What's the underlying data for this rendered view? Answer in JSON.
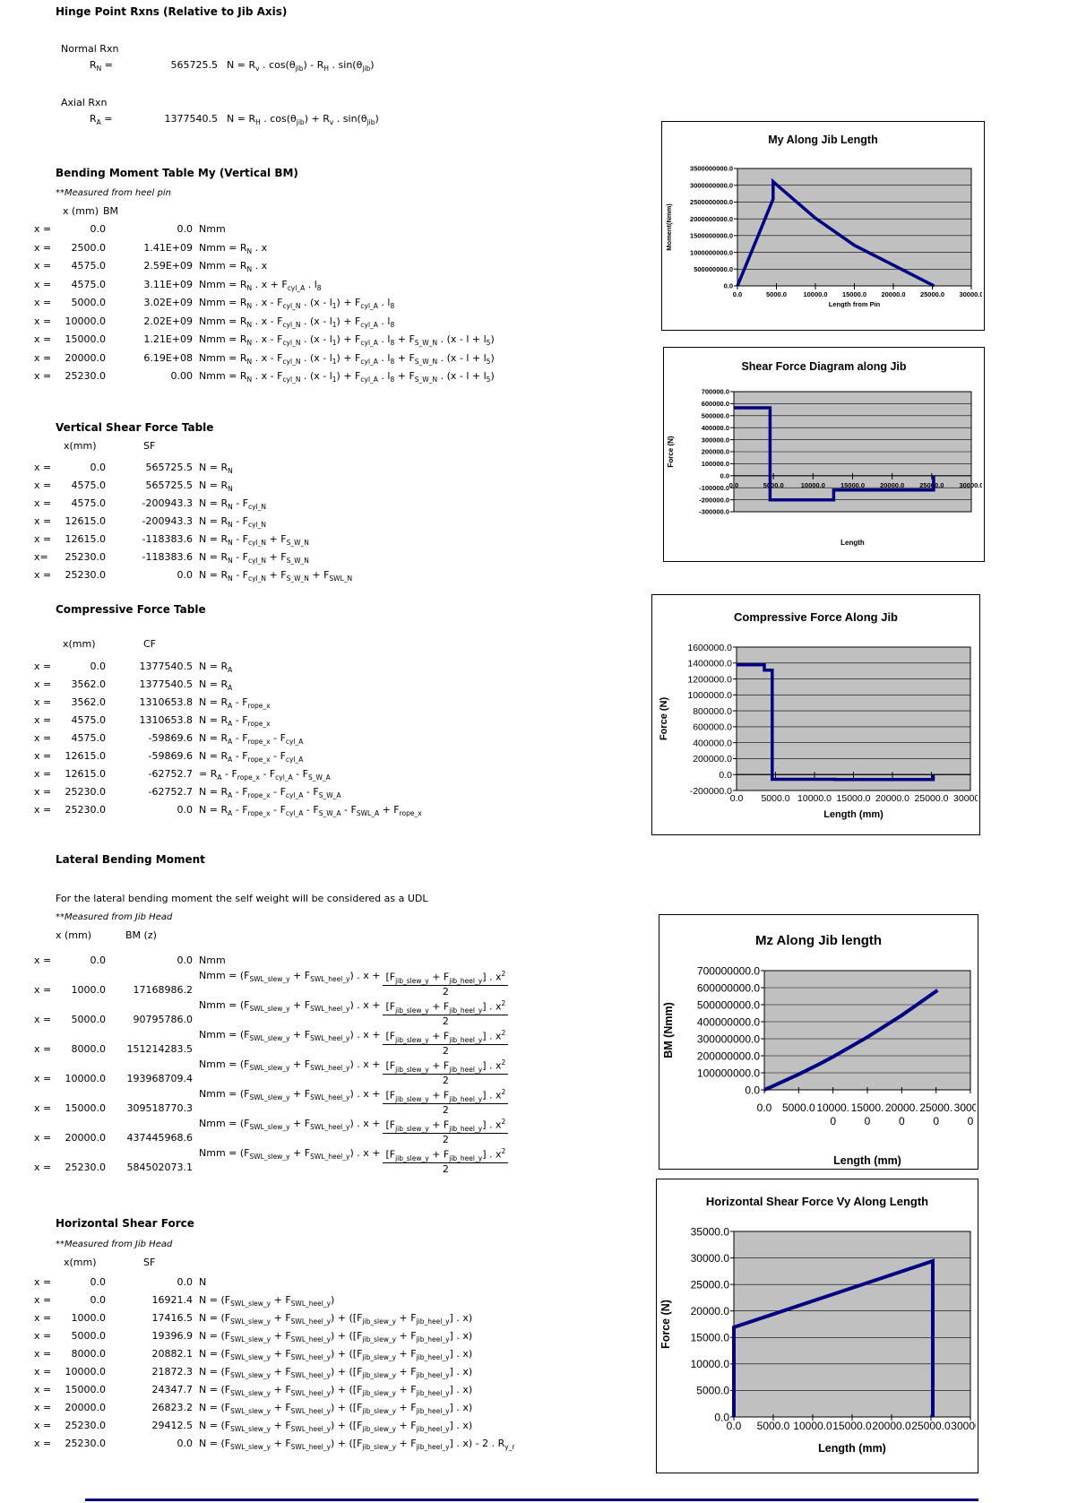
{
  "colors": {
    "series": "#000080",
    "plot_bg": "#c0c0c0",
    "chart_border": "#000000",
    "text": "#000000",
    "page_bg": "#ffffff"
  },
  "sections": {
    "hinge": {
      "title": "Hinge Point Rxns (Relative to Jib Axis)",
      "normal_label": "Normal Rxn",
      "rn_label": "R{N} =",
      "rn_value": "565725.5",
      "rn_formula": "N = R{v} . cos(θ{jib}) - R{H} . sin(θ{jib})",
      "axial_label": "Axial Rxn",
      "ra_label": "R{A} =",
      "ra_value": "1377540.5",
      "ra_formula": "N = R{H} . cos(θ{jib}) + R{v} . sin(θ{jib})"
    },
    "bm_table": {
      "title": "Bending Moment Table My (Vertical BM)",
      "note": "**Measured from heel pin",
      "col1": "x (mm)",
      "col2": "BM",
      "rows": [
        {
          "xl": "x =",
          "x": "0.0",
          "v": "0.0",
          "f": "Nmm"
        },
        {
          "xl": "x =",
          "x": "2500.0",
          "v": "1.41E+09",
          "f": "Nmm = R{N} . x"
        },
        {
          "xl": "x =",
          "x": "4575.0",
          "v": "2.59E+09",
          "f": "Nmm = R{N} . x"
        },
        {
          "xl": "x =",
          "x": "4575.0",
          "v": "3.11E+09",
          "f": "Nmm = R{N} . x + F{cyl_A} . l{8}"
        },
        {
          "xl": "x =",
          "x": "5000.0",
          "v": "3.02E+09",
          "f": "Nmm = R{N} . x - F{cyl_N} . (x - l{1}) + F{cyl_A} . l{8}"
        },
        {
          "xl": "x =",
          "x": "10000.0",
          "v": "2.02E+09",
          "f": "Nmm = R{N} . x - F{cyl_N} . (x - l{1}) + F{cyl_A} . l{8}"
        },
        {
          "xl": "x =",
          "x": "15000.0",
          "v": "1.21E+09",
          "f": "Nmm = R{N} . x - F{cyl_N} . (x - l{1}) + F{cyl_A} . l{8} + F{S_W_N} . (x - l + l{5})"
        },
        {
          "xl": "x =",
          "x": "20000.0",
          "v": "6.19E+08",
          "f": "Nmm = R{N} . x - F{cyl_N} . (x - l{1}) + F{cyl_A} . l{8} + F{S_W_N} . (x - l + l{5})"
        },
        {
          "xl": "x =",
          "x": "25230.0",
          "v": "0.00",
          "f": "Nmm = R{N} . x - F{cyl_N} . (x - l{1}) + F{cyl_A} . l{8} + F{S_W_N} . (x - l + l{5})"
        }
      ]
    },
    "sf_table": {
      "title": "Vertical Shear Force Table",
      "col1": "x(mm)",
      "col2": "SF",
      "rows": [
        {
          "xl": "x =",
          "x": "0.0",
          "v": "565725.5",
          "f": "N = R{N}"
        },
        {
          "xl": "x =",
          "x": "4575.0",
          "v": "565725.5",
          "f": "N = R{N}"
        },
        {
          "xl": "x =",
          "x": "4575.0",
          "v": "-200943.3",
          "f": "N = R{N} - F{cyl_N}"
        },
        {
          "xl": "x =",
          "x": "12615.0",
          "v": "-200943.3",
          "f": "N = R{N} - F{cyl_N}"
        },
        {
          "xl": "x =",
          "x": "12615.0",
          "v": "-118383.6",
          "f": "N = R{N} - F{cyl_N} + F{S_W_N}"
        },
        {
          "xl": "x=",
          "x": "25230.0",
          "v": "-118383.6",
          "f": "N = R{N} - F{cyl_N} + F{S_W_N}"
        },
        {
          "xl": "x =",
          "x": "25230.0",
          "v": "0.0",
          "f": "N = R{N} - F{cyl_N} + F{S_W_N} + F{SWL_N}"
        }
      ]
    },
    "cf_table": {
      "title": "Compressive Force Table",
      "col1": "x(mm)",
      "col2": "CF",
      "rows": [
        {
          "xl": "x =",
          "x": "0.0",
          "v": "1377540.5",
          "f": "N = R{A}"
        },
        {
          "xl": "x =",
          "x": "3562.0",
          "v": "1377540.5",
          "f": "N = R{A}"
        },
        {
          "xl": "x =",
          "x": "3562.0",
          "v": "1310653.8",
          "f": "N = R{A} - F{rope_x}"
        },
        {
          "xl": "x =",
          "x": "4575.0",
          "v": "1310653.8",
          "f": "N = R{A} - F{rope_x}"
        },
        {
          "xl": "x =",
          "x": "4575.0",
          "v": "-59869.6",
          "f": "N = R{A} - F{rope_x} - F{cyl_A}"
        },
        {
          "xl": "x =",
          "x": "12615.0",
          "v": "-59869.6",
          "f": "N = R{A} - F{rope_x} - F{cyl_A}"
        },
        {
          "xl": "x =",
          "x": "12615.0",
          "v": "-62752.7",
          "f": "= R{A} - F{rope_x} - F{cyl_A} - F{S_W_A}"
        },
        {
          "xl": "x =",
          "x": "25230.0",
          "v": "-62752.7",
          "f": "N = R{A} - F{rope_x} - F{cyl_A} - F{S_W_A}"
        },
        {
          "xl": "x =",
          "x": "25230.0",
          "v": "0.0",
          "f": "N = R{A} - F{rope_x} - F{cyl_A} - F{S_W_A} - F{SWL_A} + F{rope_x}"
        }
      ]
    },
    "lateral": {
      "title": "Lateral Bending Moment",
      "desc": "For the lateral bending moment the self weight will be considered as a UDL",
      "note": "**Measured from Jib Head",
      "col1": "x (mm)",
      "col2": "BM (z)",
      "rows": [
        {
          "cls": "first",
          "xl": "x =",
          "x": "0.0",
          "v": "0.0",
          "f": "Nmm"
        },
        {
          "xl": "x =",
          "x": "1000.0",
          "v": "17168986.2",
          "fpre": "Nmm = (F{SWL_slew_y} + F{SWL_heel_y}) . x + ",
          "fnum": "[F{jib_slew_y} + F{jib_heel_y}] . x{^2}",
          "fden": "2"
        },
        {
          "xl": "x =",
          "x": "5000.0",
          "v": "90795786.0",
          "fpre": "Nmm = (F{SWL_slew_y} + F{SWL_heel_y}) . x + ",
          "fnum": "[F{jib_slew_y} + F{jib_heel_y}] . x{^2}",
          "fden": "2"
        },
        {
          "xl": "x =",
          "x": "8000.0",
          "v": "151214283.5",
          "fpre": "Nmm = (F{SWL_slew_y} + F{SWL_heel_y}) . x + ",
          "fnum": "[F{jib_slew_y} + F{jib_heel_y}] . x{^2}",
          "fden": "2"
        },
        {
          "xl": "x =",
          "x": "10000.0",
          "v": "193968709.4",
          "fpre": "Nmm = (F{SWL_slew_y} + F{SWL_heel_y}) . x + ",
          "fnum": "[F{jib_slew_y} + F{jib_heel_y}] . x{^2}",
          "fden": "2"
        },
        {
          "xl": "x =",
          "x": "15000.0",
          "v": "309518770.3",
          "fpre": "Nmm = (F{SWL_slew_y} + F{SWL_heel_y}) . x + ",
          "fnum": "[F{jib_slew_y} + F{jib_heel_y}] . x{^2}",
          "fden": "2"
        },
        {
          "xl": "x =",
          "x": "20000.0",
          "v": "437445968.6",
          "fpre": "Nmm = (F{SWL_slew_y} + F{SWL_heel_y}) . x + ",
          "fnum": "[F{jib_slew_y} + F{jib_heel_y}] . x{^2}",
          "fden": "2"
        },
        {
          "xl": "x =",
          "x": "25230.0",
          "v": "584502073.1",
          "fpre": "Nmm = (F{SWL_slew_y} + F{SWL_heel_y}) . x + ",
          "fnum": "[F{jib_slew_y} + F{jib_heel_y}] . x{^2}",
          "fden": "2"
        }
      ]
    },
    "hsf_table": {
      "title": "Horizontal Shear Force",
      "note": "**Measured from Jib Head",
      "col1": "x(mm)",
      "col2": "SF",
      "rows": [
        {
          "xl": "x =",
          "x": "0.0",
          "v": "0.0",
          "f": "N"
        },
        {
          "xl": "x =",
          "x": "0.0",
          "v": "16921.4",
          "f": "N = (F{SWL_slew_y} + F{SWL_heel_y})"
        },
        {
          "xl": "x =",
          "x": "1000.0",
          "v": "17416.5",
          "f": "N = (F{SWL_slew_y} + F{SWL_heel_y}) + ([F{jib_slew_y} + F{jib_heel_y}] . x)"
        },
        {
          "xl": "x =",
          "x": "5000.0",
          "v": "19396.9",
          "f": "N = (F{SWL_slew_y} + F{SWL_heel_y}) + ([F{jib_slew_y} + F{jib_heel_y}] . x)"
        },
        {
          "xl": "x =",
          "x": "8000.0",
          "v": "20882.1",
          "f": "N = (F{SWL_slew_y} + F{SWL_heel_y}) + ([F{jib_slew_y} + F{jib_heel_y}] . x)"
        },
        {
          "xl": "x =",
          "x": "10000.0",
          "v": "21872.3",
          "f": "N = (F{SWL_slew_y} + F{SWL_heel_y}) + ([F{jib_slew_y} + F{jib_heel_y}] . x)"
        },
        {
          "xl": "x =",
          "x": "15000.0",
          "v": "24347.7",
          "f": "N = (F{SWL_slew_y} + F{SWL_heel_y}) + ([F{jib_slew_y} + F{jib_heel_y}] . x)"
        },
        {
          "xl": "x =",
          "x": "20000.0",
          "v": "26823.2",
          "f": "N = (F{SWL_slew_y} + F{SWL_heel_y}) + ([F{jib_slew_y} + F{jib_heel_y}] . x)"
        },
        {
          "xl": "x =",
          "x": "25230.0",
          "v": "29412.5",
          "f": "N = (F{SWL_slew_y} + F{SWL_heel_y}) + ([F{jib_slew_y} + F{jib_heel_y}] . x)"
        },
        {
          "xl": "x =",
          "x": "25230.0",
          "v": "0.0",
          "f": "N = (F{SWL_slew_y} + F{SWL_heel_y}) + ([F{jib_slew_y} + F{jib_heel_y}] . x) - 2 . R{y_r}"
        }
      ]
    }
  },
  "chart_data": [
    {
      "name": "my-along-jib-length",
      "type": "line",
      "title": "My Along Jib Length",
      "xlabel": "Length from Pin",
      "ylabel": "Moment(Nmm)",
      "xlim": [
        0,
        30000
      ],
      "ylim": [
        0,
        3500000000
      ],
      "grid": true,
      "legend": "none",
      "xticks": [
        0,
        5000,
        10000,
        15000,
        20000,
        25000,
        30000
      ],
      "xtick_labels": [
        "0.0",
        "5000.0",
        "10000.0",
        "15000.0",
        "20000.0",
        "25000.0",
        "30000.0"
      ],
      "yticks": [
        0,
        500000000,
        1000000000,
        1500000000,
        2000000000,
        2500000000,
        3000000000,
        3500000000
      ],
      "ytick_labels": [
        "0.0",
        "500000000.0",
        "1000000000.0",
        "1500000000.0",
        "2000000000.0",
        "2500000000.0",
        "3000000000.0",
        "3500000000.0"
      ],
      "points": [
        [
          0,
          0
        ],
        [
          2500,
          1410000000
        ],
        [
          4575,
          2590000000
        ],
        [
          4575,
          3110000000
        ],
        [
          5000,
          3020000000
        ],
        [
          10000,
          2020000000
        ],
        [
          15000,
          1210000000
        ],
        [
          20000,
          619000000
        ],
        [
          25230,
          0
        ]
      ]
    },
    {
      "name": "shear-force-diagram",
      "type": "line",
      "title": "Shear Force Diagram along Jib",
      "xlabel": "Length",
      "ylabel": "Force (N)",
      "xlim": [
        0,
        30000
      ],
      "ylim": [
        -300000,
        700000
      ],
      "grid": true,
      "legend": "none",
      "xticks": [
        0,
        5000,
        10000,
        15000,
        20000,
        25000,
        30000
      ],
      "xtick_labels": [
        "0.0",
        "5000.0",
        "10000.0",
        "15000.0",
        "20000.0",
        "25000.0",
        "30000.0"
      ],
      "yticks": [
        -300000,
        -200000,
        -100000,
        0,
        100000,
        200000,
        300000,
        400000,
        500000,
        600000,
        700000
      ],
      "ytick_labels": [
        "-300000.0",
        "-200000.0",
        "-100000.0",
        "0.0",
        "100000.0",
        "200000.0",
        "300000.0",
        "400000.0",
        "500000.0",
        "600000.0",
        "700000.0"
      ],
      "points": [
        [
          0,
          565725.5
        ],
        [
          4575,
          565725.5
        ],
        [
          4575,
          -200943.3
        ],
        [
          12615,
          -200943.3
        ],
        [
          12615,
          -118383.6
        ],
        [
          25230,
          -118383.6
        ],
        [
          25230,
          0
        ]
      ]
    },
    {
      "name": "compressive-force-along-jib",
      "type": "line",
      "title": "Compressive Force Along Jib",
      "xlabel": "Length (mm)",
      "ylabel": "Force (N)",
      "xlim": [
        0,
        30000
      ],
      "ylim": [
        -200000,
        1600000
      ],
      "grid": true,
      "legend": "none",
      "xticks": [
        0,
        5000,
        10000,
        15000,
        20000,
        25000,
        30000
      ],
      "xtick_labels": [
        "0.0",
        "5000.0",
        "10000.0",
        "15000.0",
        "20000.0",
        "25000.0",
        "30000.0"
      ],
      "yticks": [
        -200000,
        0,
        200000,
        400000,
        600000,
        800000,
        1000000,
        1200000,
        1400000,
        1600000
      ],
      "ytick_labels": [
        "-200000.0",
        "0.0",
        "200000.0",
        "400000.0",
        "600000.0",
        "800000.0",
        "1000000.0",
        "1200000.0",
        "1400000.0",
        "1600000.0"
      ],
      "points": [
        [
          0,
          1377540.5
        ],
        [
          3562,
          1377540.5
        ],
        [
          3562,
          1310653.8
        ],
        [
          4575,
          1310653.8
        ],
        [
          4575,
          -59869.6
        ],
        [
          12615,
          -59869.6
        ],
        [
          12615,
          -62752.7
        ],
        [
          25230,
          -62752.7
        ],
        [
          25230,
          0
        ]
      ]
    },
    {
      "name": "mz-along-jib-length",
      "type": "line",
      "title": "Mz Along Jib length",
      "xlabel": "Length (mm)",
      "ylabel": "BM (Nmm)",
      "xlim": [
        0,
        30000
      ],
      "ylim": [
        0,
        700000000
      ],
      "grid": true,
      "legend": "none",
      "xticks": [
        0,
        5000,
        10000,
        15000,
        20000,
        25000,
        30000
      ],
      "xtick_labels": [
        "0.0",
        "5000.0",
        "10000.\n0",
        "15000.\n0",
        "20000.\n0",
        "25000.\n0",
        "30000.\n0"
      ],
      "yticks": [
        0,
        100000000,
        200000000,
        300000000,
        400000000,
        500000000,
        600000000,
        700000000
      ],
      "ytick_labels": [
        "0.0",
        "100000000.0",
        "200000000.0",
        "300000000.0",
        "400000000.0",
        "500000000.0",
        "600000000.0",
        "700000000.0"
      ],
      "points": [
        [
          0,
          0
        ],
        [
          1000,
          17168986.2
        ],
        [
          5000,
          90795786.0
        ],
        [
          8000,
          151214283.5
        ],
        [
          10000,
          193968709.4
        ],
        [
          15000,
          309518770.3
        ],
        [
          20000,
          437445968.6
        ],
        [
          25230,
          584502073.1
        ]
      ]
    },
    {
      "name": "horizontal-shear-force-vy",
      "type": "line",
      "title": "Horizontal Shear Force Vy Along Length",
      "xlabel": "Length (mm)",
      "ylabel": "Force (N)",
      "xlim": [
        0,
        30000
      ],
      "ylim": [
        0,
        35000
      ],
      "grid": true,
      "legend": "none",
      "xticks": [
        0,
        5000,
        10000,
        15000,
        20000,
        25000,
        30000
      ],
      "xtick_labels": [
        "0.0",
        "5000.0",
        "10000.0",
        "15000.0",
        "20000.0",
        "25000.0",
        "30000.0"
      ],
      "yticks": [
        0,
        5000,
        10000,
        15000,
        20000,
        25000,
        30000,
        35000
      ],
      "ytick_labels": [
        "0.0",
        "5000.0",
        "10000.0",
        "15000.0",
        "20000.0",
        "25000.0",
        "30000.0",
        "35000.0"
      ],
      "points": [
        [
          0,
          0
        ],
        [
          0,
          16921.4
        ],
        [
          1000,
          17416.5
        ],
        [
          5000,
          19396.9
        ],
        [
          8000,
          20882.1
        ],
        [
          10000,
          21872.3
        ],
        [
          15000,
          24347.7
        ],
        [
          20000,
          26823.2
        ],
        [
          25230,
          29412.5
        ],
        [
          25230,
          0
        ]
      ]
    }
  ]
}
